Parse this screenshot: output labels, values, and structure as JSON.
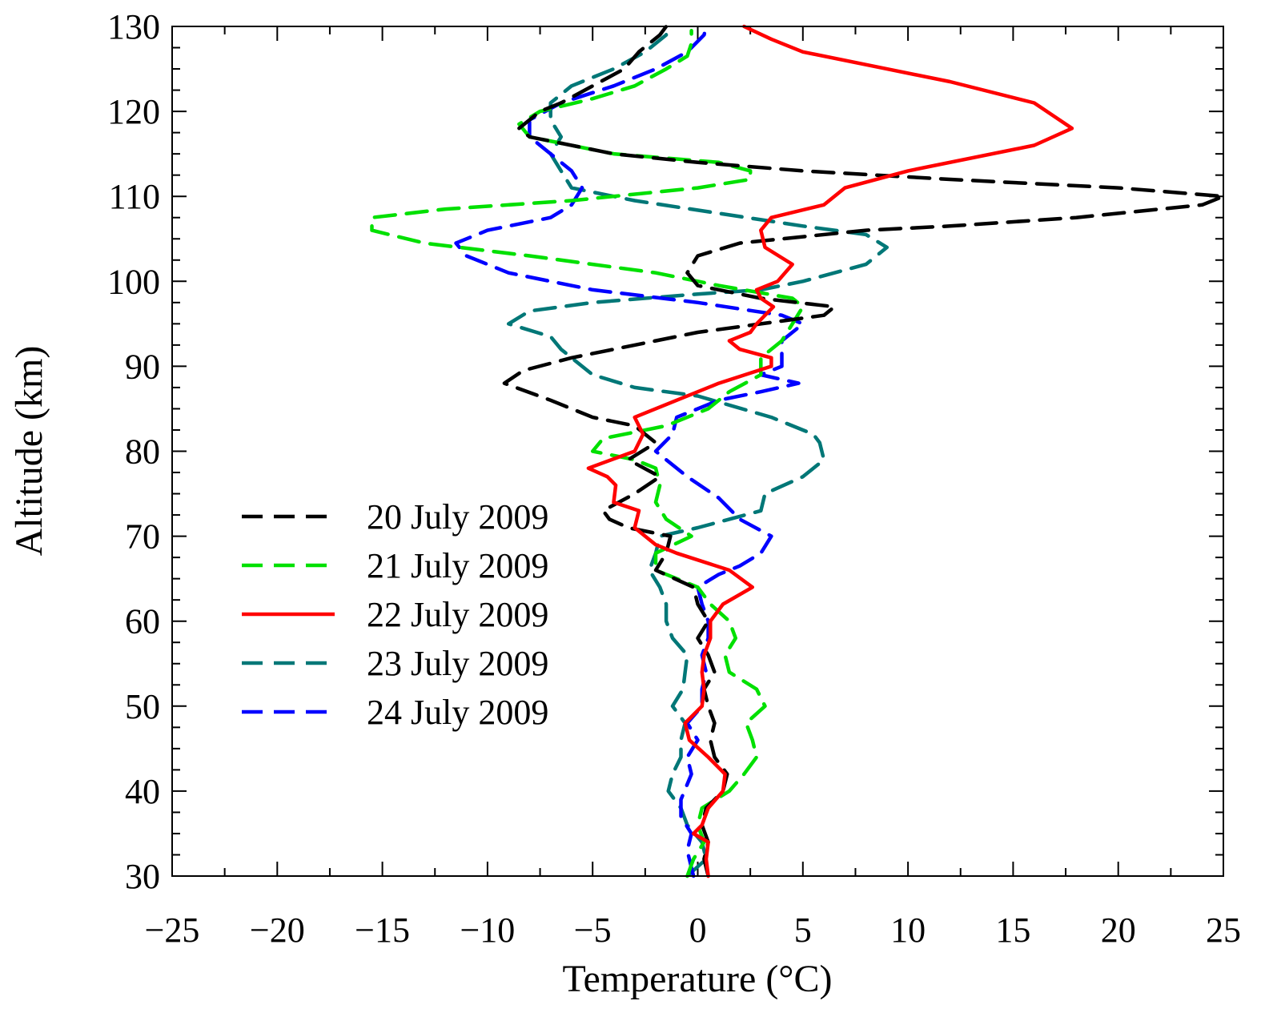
{
  "chart_data": {
    "type": "line",
    "title": "",
    "xlabel": "Temperature (°C)",
    "ylabel": "Altitude (km)",
    "xlim": [
      -25,
      25
    ],
    "ylim": [
      30,
      130
    ],
    "x_ticks": [
      -25,
      -20,
      -15,
      -10,
      -5,
      0,
      5,
      10,
      15,
      20,
      25
    ],
    "x_tick_labels": [
      "−25",
      "−20",
      "−15",
      "−10",
      "−5",
      "0",
      "5",
      "10",
      "15",
      "20",
      "25"
    ],
    "y_ticks": [
      30,
      40,
      50,
      60,
      70,
      80,
      90,
      100,
      110,
      120,
      130
    ],
    "y_tick_labels": [
      "30",
      "40",
      "50",
      "60",
      "70",
      "80",
      "90",
      "100",
      "110",
      "120",
      "130"
    ],
    "legend_position": "left-middle",
    "series": [
      {
        "name": "20 July 2009",
        "color": "#000000",
        "style": "dashed",
        "points": [
          [
            0.5,
            30
          ],
          [
            0.3,
            32
          ],
          [
            0.5,
            34
          ],
          [
            0.2,
            36
          ],
          [
            0.4,
            38
          ],
          [
            1.2,
            40
          ],
          [
            1.4,
            42
          ],
          [
            0.8,
            44
          ],
          [
            0.6,
            46
          ],
          [
            0.8,
            48
          ],
          [
            0.5,
            50
          ],
          [
            0.3,
            52
          ],
          [
            0.8,
            54
          ],
          [
            0.5,
            56
          ],
          [
            0,
            58
          ],
          [
            0.5,
            60
          ],
          [
            0,
            62
          ],
          [
            -0.2,
            64
          ],
          [
            -2,
            66
          ],
          [
            -1.5,
            68
          ],
          [
            -1.3,
            70
          ],
          [
            -3.3,
            71
          ],
          [
            -4.2,
            72
          ],
          [
            -4.5,
            73
          ],
          [
            -3,
            75
          ],
          [
            -1.8,
            77
          ],
          [
            -3.3,
            79
          ],
          [
            -2,
            81
          ],
          [
            -3,
            83
          ],
          [
            -5,
            84
          ],
          [
            -7,
            86
          ],
          [
            -9.2,
            88
          ],
          [
            -8.3,
            89.5
          ],
          [
            -6,
            91
          ],
          [
            -3,
            92.5
          ],
          [
            0,
            94
          ],
          [
            3,
            95
          ],
          [
            6,
            96
          ],
          [
            6.5,
            97
          ],
          [
            3,
            98
          ],
          [
            0,
            99.5
          ],
          [
            -0.5,
            101
          ],
          [
            0,
            103
          ],
          [
            2,
            104.5
          ],
          [
            4,
            105
          ],
          [
            8,
            106
          ],
          [
            12,
            106.5
          ],
          [
            18,
            107.5
          ],
          [
            24,
            109
          ],
          [
            25,
            110
          ],
          [
            20,
            111
          ],
          [
            12,
            112
          ],
          [
            5,
            113
          ],
          [
            0,
            114
          ],
          [
            -4,
            115
          ],
          [
            -6,
            116
          ],
          [
            -8,
            117
          ],
          [
            -8.5,
            118
          ],
          [
            -7.5,
            120
          ],
          [
            -6.5,
            121
          ],
          [
            -5,
            123
          ],
          [
            -3.5,
            125
          ],
          [
            -2.8,
            127
          ],
          [
            -1.8,
            129
          ],
          [
            -1.5,
            130
          ]
        ]
      },
      {
        "name": "21 July 2009",
        "color": "#00e000",
        "style": "dashed",
        "points": [
          [
            -0.5,
            30
          ],
          [
            -0.2,
            32
          ],
          [
            0.3,
            34
          ],
          [
            0,
            36
          ],
          [
            0.2,
            38
          ],
          [
            1.5,
            40
          ],
          [
            2.2,
            42
          ],
          [
            2.8,
            44
          ],
          [
            2.6,
            46
          ],
          [
            2.3,
            48
          ],
          [
            3.2,
            50
          ],
          [
            2.8,
            52
          ],
          [
            1.5,
            54
          ],
          [
            1.3,
            56
          ],
          [
            1.8,
            58
          ],
          [
            1.5,
            60
          ],
          [
            0.6,
            62
          ],
          [
            0,
            64
          ],
          [
            -2,
            66
          ],
          [
            -2,
            68
          ],
          [
            -0.3,
            70
          ],
          [
            -1.5,
            72
          ],
          [
            -2,
            74
          ],
          [
            -1.8,
            76
          ],
          [
            -2,
            78
          ],
          [
            -3,
            79
          ],
          [
            -5,
            80
          ],
          [
            -4.5,
            81.5
          ],
          [
            -1.5,
            83
          ],
          [
            0.5,
            85
          ],
          [
            1.5,
            87
          ],
          [
            3,
            89
          ],
          [
            3,
            91
          ],
          [
            4,
            93
          ],
          [
            4.5,
            95
          ],
          [
            5,
            97
          ],
          [
            4.5,
            98
          ],
          [
            1,
            99.5
          ],
          [
            -2,
            101
          ],
          [
            -8,
            103
          ],
          [
            -13,
            104.5
          ],
          [
            -15.5,
            106
          ],
          [
            -15.5,
            107.5
          ],
          [
            -12,
            108.5
          ],
          [
            -6,
            109.5
          ],
          [
            0,
            111
          ],
          [
            2.5,
            112
          ],
          [
            2.5,
            113
          ],
          [
            1,
            114
          ],
          [
            -4,
            115
          ],
          [
            -8,
            117
          ],
          [
            -8.5,
            118.5
          ],
          [
            -7.5,
            120
          ],
          [
            -5,
            121.5
          ],
          [
            -3,
            123
          ],
          [
            -1.5,
            125
          ],
          [
            -0.5,
            126.5
          ],
          [
            -0.3,
            128
          ],
          [
            -0.3,
            129.5
          ]
        ]
      },
      {
        "name": "22 July 2009",
        "color": "#ff0000",
        "style": "solid",
        "points": [
          [
            0.5,
            30
          ],
          [
            0.4,
            32
          ],
          [
            0.5,
            34
          ],
          [
            -0.2,
            35
          ],
          [
            0.2,
            36
          ],
          [
            0.5,
            38
          ],
          [
            1.2,
            40
          ],
          [
            1.3,
            42
          ],
          [
            0.5,
            44
          ],
          [
            -0.4,
            46
          ],
          [
            -0.6,
            48
          ],
          [
            0.2,
            50
          ],
          [
            0.3,
            52
          ],
          [
            0.2,
            54
          ],
          [
            0.3,
            56
          ],
          [
            0.6,
            58
          ],
          [
            0.6,
            60
          ],
          [
            1.2,
            62
          ],
          [
            2.6,
            64
          ],
          [
            1.5,
            66
          ],
          [
            -1,
            68
          ],
          [
            -2,
            69
          ],
          [
            -3,
            71
          ],
          [
            -2.8,
            73
          ],
          [
            -4,
            74
          ],
          [
            -3.9,
            76
          ],
          [
            -4.3,
            77
          ],
          [
            -5.2,
            78
          ],
          [
            -3,
            80
          ],
          [
            -2.6,
            82
          ],
          [
            -3,
            84
          ],
          [
            -1,
            86
          ],
          [
            1,
            88
          ],
          [
            3.5,
            90
          ],
          [
            3.5,
            91
          ],
          [
            2,
            92
          ],
          [
            1.5,
            93
          ],
          [
            2.5,
            94
          ],
          [
            2.8,
            95
          ],
          [
            3.2,
            96
          ],
          [
            3.6,
            97
          ],
          [
            3,
            98
          ],
          [
            2.8,
            99
          ],
          [
            3.8,
            100
          ],
          [
            4.5,
            102
          ],
          [
            3.2,
            104
          ],
          [
            3,
            106
          ],
          [
            3.5,
            107.5
          ],
          [
            6,
            109
          ],
          [
            7,
            111
          ],
          [
            10,
            113
          ],
          [
            16,
            116
          ],
          [
            17.8,
            118
          ],
          [
            16,
            121
          ],
          [
            12,
            123.5
          ],
          [
            9,
            125
          ],
          [
            5,
            127
          ],
          [
            3.5,
            128.5
          ],
          [
            2.2,
            130
          ]
        ]
      },
      {
        "name": "23 July 2009",
        "color": "#007777",
        "style": "dashed",
        "points": [
          [
            -0.5,
            30
          ],
          [
            0.4,
            32
          ],
          [
            0.2,
            34
          ],
          [
            -0.5,
            36
          ],
          [
            -0.8,
            38
          ],
          [
            -1.4,
            40
          ],
          [
            -1.2,
            42
          ],
          [
            -0.8,
            44
          ],
          [
            -0.8,
            46
          ],
          [
            -0.6,
            48
          ],
          [
            -1.2,
            50
          ],
          [
            -0.7,
            52
          ],
          [
            -0.6,
            54
          ],
          [
            -0.5,
            56
          ],
          [
            -1.2,
            58
          ],
          [
            -1.5,
            60
          ],
          [
            -1.5,
            62
          ],
          [
            -1.8,
            64
          ],
          [
            -2.3,
            66
          ],
          [
            -2,
            68
          ],
          [
            -1.8,
            70
          ],
          [
            0,
            71
          ],
          [
            1.5,
            72
          ],
          [
            3,
            73
          ],
          [
            3.2,
            75
          ],
          [
            5,
            77
          ],
          [
            6,
            79
          ],
          [
            5.8,
            81
          ],
          [
            5.5,
            82
          ],
          [
            3.5,
            84
          ],
          [
            0,
            86.5
          ],
          [
            -3,
            87.5
          ],
          [
            -5,
            89
          ],
          [
            -6,
            91
          ],
          [
            -6.5,
            92
          ],
          [
            -7,
            93.5
          ],
          [
            -9,
            95
          ],
          [
            -8,
            96.5
          ],
          [
            -5,
            97.5
          ],
          [
            0,
            98.5
          ],
          [
            3,
            99
          ],
          [
            5,
            100
          ],
          [
            8,
            102
          ],
          [
            9,
            104
          ],
          [
            8,
            105.5
          ],
          [
            5,
            106.5
          ],
          [
            1,
            108
          ],
          [
            -3,
            109.5
          ],
          [
            -6,
            111
          ],
          [
            -6.5,
            113
          ],
          [
            -7,
            115
          ],
          [
            -6.5,
            117
          ],
          [
            -7,
            119
          ],
          [
            -7,
            121
          ],
          [
            -6,
            123
          ],
          [
            -4,
            125
          ],
          [
            -2.5,
            127
          ],
          [
            -1.5,
            129
          ],
          [
            -1.5,
            130
          ]
        ]
      },
      {
        "name": "24 July 2009",
        "color": "#0000ff",
        "style": "dashed",
        "points": [
          [
            -0.2,
            30
          ],
          [
            -0.5,
            33
          ],
          [
            -0.3,
            35
          ],
          [
            -0.8,
            37
          ],
          [
            -0.8,
            39
          ],
          [
            -0.3,
            42
          ],
          [
            -0.5,
            44
          ],
          [
            0,
            46
          ],
          [
            -0.5,
            48
          ],
          [
            0.2,
            50
          ],
          [
            0.2,
            52
          ],
          [
            0.4,
            54
          ],
          [
            0.2,
            56
          ],
          [
            0.5,
            58
          ],
          [
            0.5,
            60
          ],
          [
            0.2,
            62
          ],
          [
            0,
            64
          ],
          [
            1,
            65.5
          ],
          [
            2,
            66.5
          ],
          [
            3,
            68
          ],
          [
            3.5,
            70
          ],
          [
            2,
            72
          ],
          [
            1,
            74.5
          ],
          [
            -0.5,
            77
          ],
          [
            -1.5,
            79
          ],
          [
            -2,
            80
          ],
          [
            -1.2,
            82
          ],
          [
            -1,
            84
          ],
          [
            1,
            86
          ],
          [
            3,
            87
          ],
          [
            4.8,
            88
          ],
          [
            3,
            89
          ],
          [
            4,
            90
          ],
          [
            4,
            91.5
          ],
          [
            4,
            93
          ],
          [
            5,
            95
          ],
          [
            4,
            96
          ],
          [
            0,
            97.5
          ],
          [
            -5,
            99
          ],
          [
            -9,
            101
          ],
          [
            -11,
            103
          ],
          [
            -11.5,
            104.5
          ],
          [
            -10,
            106
          ],
          [
            -7,
            107.5
          ],
          [
            -6,
            109
          ],
          [
            -5.5,
            111
          ],
          [
            -6,
            113
          ],
          [
            -7,
            115
          ],
          [
            -8,
            117
          ],
          [
            -8,
            119
          ],
          [
            -6.5,
            121
          ],
          [
            -4,
            123
          ],
          [
            -2,
            125
          ],
          [
            -0.5,
            127
          ],
          [
            0.3,
            129
          ],
          [
            0.4,
            130
          ]
        ]
      }
    ]
  }
}
